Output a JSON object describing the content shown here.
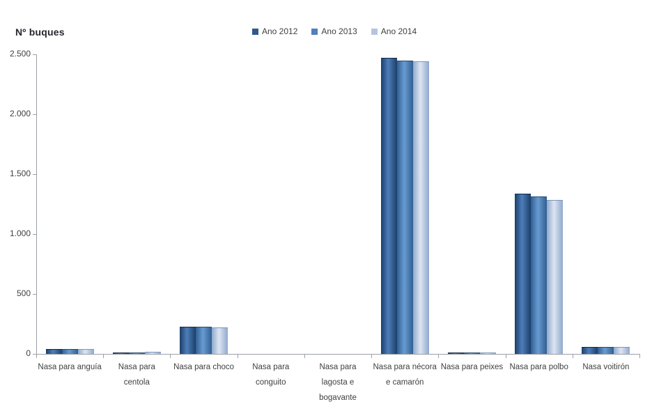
{
  "chart_data": {
    "type": "bar",
    "title": "Nº buques",
    "categories": [
      "Nasa para anguía",
      "Nasa para centola",
      "Nasa para choco",
      "Nasa para conguito",
      "Nasa para lagosta e bogavante",
      "Nasa para nécora e camarón",
      "Nasa para peixes",
      "Nasa para polbo",
      "Nasa voitirón"
    ],
    "series": [
      {
        "name": "Ano 2012",
        "color": "#2e5a8b",
        "gradient_edge": "#1c3f6a",
        "gradient_mid": "#4d7eb9",
        "border_top": "#122a47",
        "values": [
          40,
          10,
          225,
          0,
          0,
          2470,
          12,
          1340,
          60
        ]
      },
      {
        "name": "Ano 2013",
        "color": "#4f81bd",
        "gradient_edge": "#306092",
        "gradient_mid": "#689bd2",
        "border_top": "#244970",
        "values": [
          40,
          10,
          225,
          0,
          0,
          2450,
          12,
          1315,
          60
        ]
      },
      {
        "name": "Ano 2014",
        "color": "#b3c6e0",
        "gradient_edge": "#8fa9cd",
        "gradient_mid": "#dde5f2",
        "border_top": "#7c96ba",
        "values": [
          40,
          15,
          220,
          0,
          0,
          2440,
          10,
          1285,
          58
        ]
      }
    ],
    "ylim": [
      0,
      2500
    ],
    "yticks": [
      {
        "value": 0,
        "label": "0"
      },
      {
        "value": 500,
        "label": "500"
      },
      {
        "value": 1000,
        "label": "1.000"
      },
      {
        "value": 1500,
        "label": "1.500"
      },
      {
        "value": 2000,
        "label": "2.000"
      },
      {
        "value": 2500,
        "label": "2.500"
      }
    ],
    "grid": false,
    "legend_position": "top-center",
    "legend_labels": [
      "Ano 2012",
      "Ano 2013",
      "Ano 2014"
    ],
    "xlabel": "",
    "ylabel": "Nº buques",
    "colors": {
      "axis_line": "#9ba0a6",
      "axis_text": "#3f3f3f",
      "title_text": "#26262e",
      "background": "#ffffff"
    }
  }
}
